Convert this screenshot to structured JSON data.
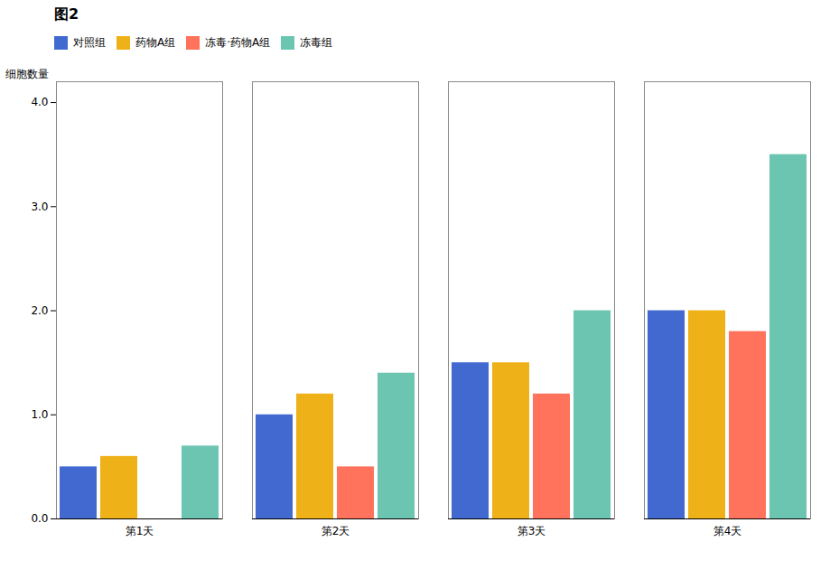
{
  "chart_data": {
    "type": "bar",
    "title": "图2",
    "categories": [
      "第1天",
      "第2天",
      "第3天",
      "第4天"
    ],
    "series": [
      {
        "name": "对照组",
        "values": [
          0.5,
          1.0,
          1.5,
          2.0
        ]
      },
      {
        "name": "药物A组",
        "values": [
          0.6,
          1.2,
          1.5,
          2.0
        ]
      },
      {
        "name": "冻毒·药物A组",
        "values": [
          0.0,
          0.5,
          1.2,
          1.8
        ]
      },
      {
        "name": "冻毒组",
        "values": [
          0.7,
          1.4,
          2.0,
          3.5
        ]
      }
    ],
    "ylabel": "细胞数量",
    "ylim": [
      0,
      4.2
    ],
    "yticks": [
      0,
      1,
      2,
      3,
      4
    ],
    "legend": "upper left"
  }
}
